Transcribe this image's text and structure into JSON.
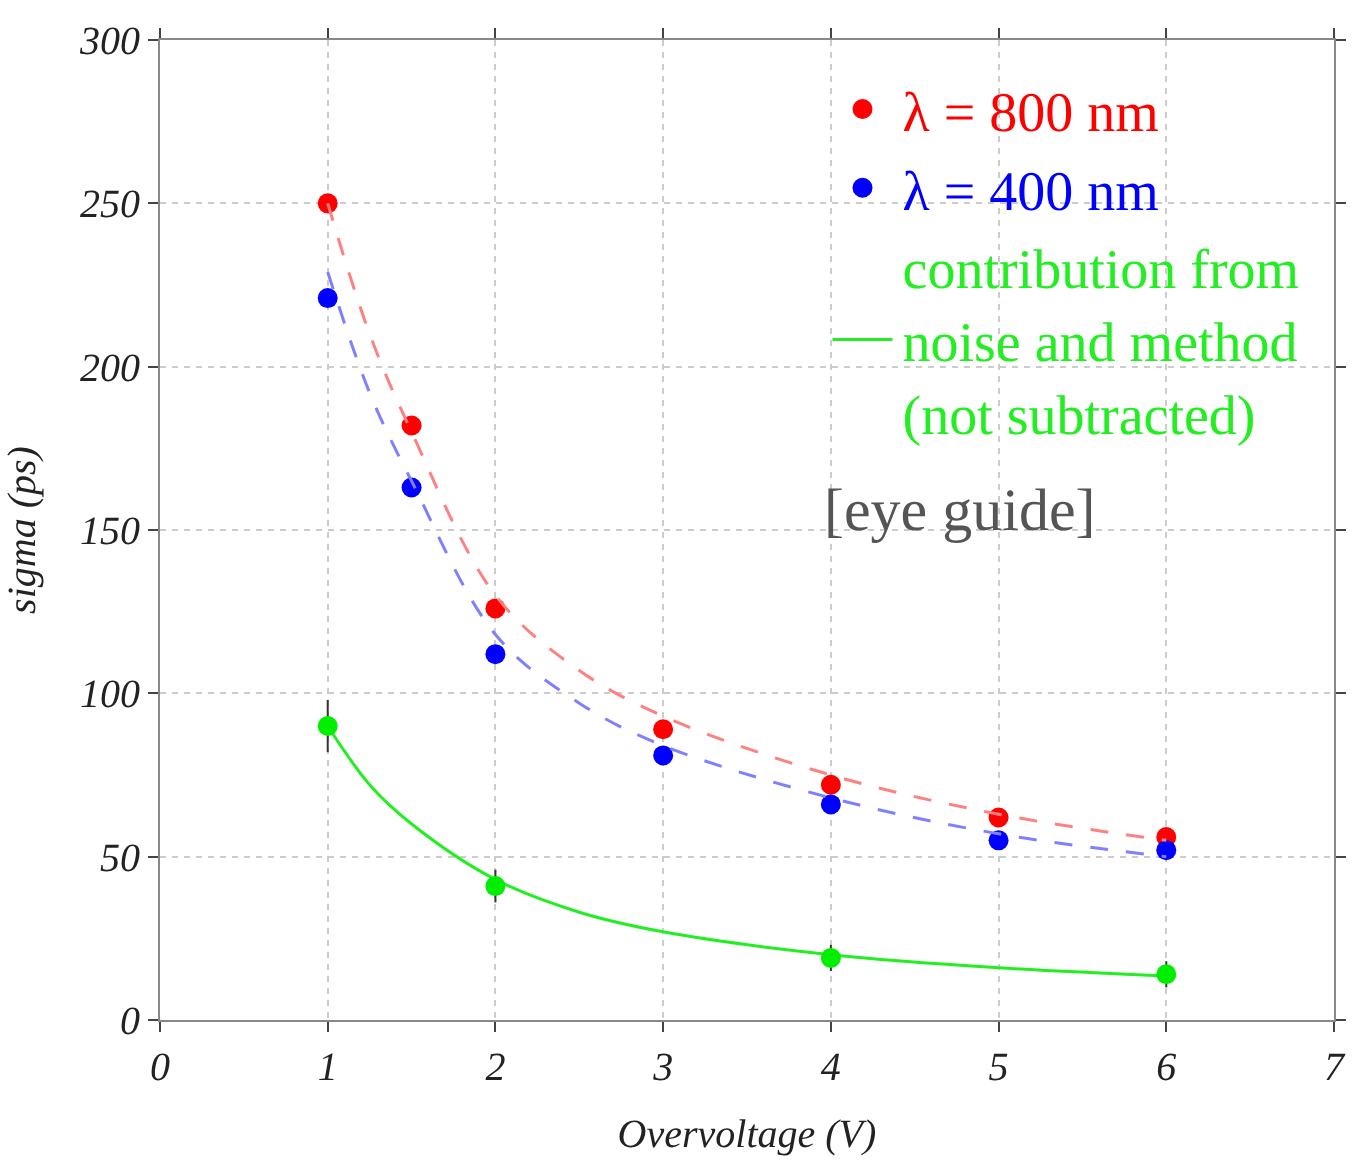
{
  "chart_data": {
    "type": "scatter",
    "xlabel": "Overvoltage (V)",
    "ylabel": "sigma (ps)",
    "xlim": [
      0,
      7
    ],
    "xticks": [
      0,
      1,
      2,
      3,
      4,
      5,
      6,
      7
    ],
    "ylim": [
      0,
      300
    ],
    "yticks": [
      0,
      50,
      100,
      150,
      200,
      250,
      300
    ],
    "grid": true,
    "legend": "top right",
    "marker": "circle",
    "series": [
      {
        "name": "λ = 800 nm",
        "color": "#ff0000",
        "x": [
          1,
          1.5,
          2,
          3,
          4,
          5,
          6
        ],
        "values": [
          250,
          182,
          126,
          89,
          72,
          62,
          56
        ]
      },
      {
        "name": "λ = 400 nm",
        "color": "#0000ff",
        "x": [
          1,
          1.5,
          2,
          3,
          4,
          5,
          6
        ],
        "values": [
          221,
          163,
          112,
          81,
          66,
          55,
          52
        ]
      },
      {
        "name": "contribution from noise and method (not subtracted)",
        "type": "line",
        "line_style": "solid",
        "marker": "none",
        "color": "#22ee22",
        "x": [
          1,
          1.25,
          1.5,
          2,
          2.5,
          3,
          4,
          5,
          6
        ],
        "values": [
          90,
          72,
          60,
          43,
          33,
          27,
          20,
          16,
          13.5
        ]
      },
      {
        "color": "#00ee00",
        "x": [
          1,
          2,
          4,
          6
        ],
        "values": [
          90,
          41,
          19,
          14
        ],
        "errors": [
          8,
          5,
          4,
          4
        ]
      },
      {
        "type": "line",
        "line_style": "dashed",
        "marker": "none",
        "color": "#ff8080",
        "x": [
          1,
          1.25,
          1.5,
          2,
          2.5,
          3,
          4,
          5,
          6
        ],
        "values": [
          250,
          210,
          180,
          130,
          107,
          93,
          75,
          63,
          55
        ]
      },
      {
        "type": "line",
        "line_style": "dashed",
        "marker": "none",
        "color": "#8080ff",
        "x": [
          1,
          1.25,
          1.5,
          2,
          2.5,
          3,
          4,
          5,
          6
        ],
        "values": [
          229,
          192,
          165,
          118,
          97,
          84,
          68,
          57,
          50
        ]
      }
    ],
    "annotations": [
      "[eye guide]"
    ]
  }
}
